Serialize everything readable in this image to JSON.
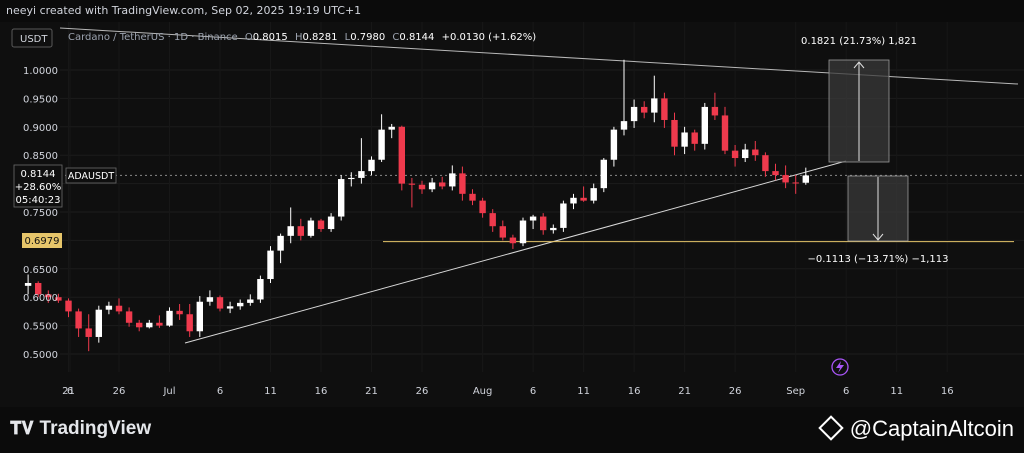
{
  "credit": "neeyi created with TradingView.com, Sep 02, 2025 19:19 UTC+1",
  "quote_currency": "USDT",
  "legend": {
    "symbol": "Cardano / TetherUS · 1D · Binance",
    "o_label": "O",
    "o_val": "0.8015",
    "h_label": "H",
    "h_val": "0.8281",
    "l_label": "L",
    "l_val": "0.7980",
    "c_label": "C",
    "c_val": "0.8144",
    "change": "+0.0130 (+1.62%)"
  },
  "price_label": {
    "price": "0.8144",
    "change": "+28.60%",
    "countdown": "05:40:23",
    "ticker": "ADAUSDT"
  },
  "support_label": "0.6979",
  "measure_up": "0.1821 (21.73%) 1,821",
  "measure_down": "−0.1113 (−13.71%) −1,113",
  "branding": {
    "tradingview": "TradingView",
    "captain": "@CaptainAltcoin"
  },
  "colors": {
    "up": "#ffffff",
    "down": "#ef3a4d",
    "support": "#e6c56a",
    "background": "#0f0f0f"
  },
  "icons": {
    "lightning": "lightning-icon"
  },
  "chart_data": {
    "type": "candlestick",
    "x_ticks": [
      "6",
      "21",
      "26",
      "Jul",
      "6",
      "11",
      "16",
      "21",
      "26",
      "Aug",
      "6",
      "11",
      "16",
      "21",
      "26",
      "Sep",
      "6",
      "11",
      "16"
    ],
    "y_ticks": [
      "1.0000",
      "0.9500",
      "0.9000",
      "0.8500",
      "0.8000",
      "0.7500",
      "0.7000",
      "0.6500",
      "0.6000",
      "0.5500",
      "0.5000"
    ],
    "ylim": [
      0.48,
      1.03
    ],
    "x_range": [
      "2025-06-16",
      "2025-09-17"
    ],
    "support_level": 0.6979,
    "series": [
      {
        "d": "2025-06-17",
        "o": 0.62,
        "h": 0.64,
        "l": 0.605,
        "c": 0.625
      },
      {
        "d": "2025-06-18",
        "o": 0.625,
        "h": 0.628,
        "l": 0.6,
        "c": 0.605
      },
      {
        "d": "2025-06-19",
        "o": 0.605,
        "h": 0.612,
        "l": 0.59,
        "c": 0.6
      },
      {
        "d": "2025-06-20",
        "o": 0.6,
        "h": 0.606,
        "l": 0.59,
        "c": 0.594
      },
      {
        "d": "2025-06-21",
        "o": 0.594,
        "h": 0.598,
        "l": 0.565,
        "c": 0.575
      },
      {
        "d": "2025-06-22",
        "o": 0.575,
        "h": 0.58,
        "l": 0.53,
        "c": 0.545
      },
      {
        "d": "2025-06-23",
        "o": 0.545,
        "h": 0.57,
        "l": 0.505,
        "c": 0.53
      },
      {
        "d": "2025-06-24",
        "o": 0.53,
        "h": 0.585,
        "l": 0.52,
        "c": 0.578
      },
      {
        "d": "2025-06-25",
        "o": 0.578,
        "h": 0.592,
        "l": 0.57,
        "c": 0.585
      },
      {
        "d": "2025-06-26",
        "o": 0.585,
        "h": 0.598,
        "l": 0.57,
        "c": 0.575
      },
      {
        "d": "2025-06-27",
        "o": 0.575,
        "h": 0.582,
        "l": 0.548,
        "c": 0.555
      },
      {
        "d": "2025-06-28",
        "o": 0.555,
        "h": 0.56,
        "l": 0.54,
        "c": 0.547
      },
      {
        "d": "2025-06-29",
        "o": 0.547,
        "h": 0.56,
        "l": 0.545,
        "c": 0.555
      },
      {
        "d": "2025-06-30",
        "o": 0.555,
        "h": 0.568,
        "l": 0.546,
        "c": 0.55
      },
      {
        "d": "2025-07-01",
        "o": 0.55,
        "h": 0.582,
        "l": 0.548,
        "c": 0.576
      },
      {
        "d": "2025-07-02",
        "o": 0.576,
        "h": 0.588,
        "l": 0.56,
        "c": 0.57
      },
      {
        "d": "2025-07-03",
        "o": 0.57,
        "h": 0.588,
        "l": 0.53,
        "c": 0.54
      },
      {
        "d": "2025-07-04",
        "o": 0.54,
        "h": 0.602,
        "l": 0.53,
        "c": 0.592
      },
      {
        "d": "2025-07-05",
        "o": 0.592,
        "h": 0.612,
        "l": 0.585,
        "c": 0.6
      },
      {
        "d": "2025-07-06",
        "o": 0.6,
        "h": 0.603,
        "l": 0.575,
        "c": 0.58
      },
      {
        "d": "2025-07-07",
        "o": 0.58,
        "h": 0.592,
        "l": 0.572,
        "c": 0.584
      },
      {
        "d": "2025-07-08",
        "o": 0.584,
        "h": 0.596,
        "l": 0.578,
        "c": 0.59
      },
      {
        "d": "2025-07-09",
        "o": 0.59,
        "h": 0.605,
        "l": 0.585,
        "c": 0.596
      },
      {
        "d": "2025-07-10",
        "o": 0.596,
        "h": 0.638,
        "l": 0.59,
        "c": 0.632
      },
      {
        "d": "2025-07-11",
        "o": 0.632,
        "h": 0.69,
        "l": 0.625,
        "c": 0.682
      },
      {
        "d": "2025-07-12",
        "o": 0.682,
        "h": 0.712,
        "l": 0.66,
        "c": 0.708
      },
      {
        "d": "2025-07-13",
        "o": 0.708,
        "h": 0.758,
        "l": 0.695,
        "c": 0.725
      },
      {
        "d": "2025-07-14",
        "o": 0.725,
        "h": 0.738,
        "l": 0.7,
        "c": 0.708
      },
      {
        "d": "2025-07-15",
        "o": 0.708,
        "h": 0.74,
        "l": 0.705,
        "c": 0.735
      },
      {
        "d": "2025-07-16",
        "o": 0.735,
        "h": 0.738,
        "l": 0.715,
        "c": 0.72
      },
      {
        "d": "2025-07-17",
        "o": 0.72,
        "h": 0.748,
        "l": 0.715,
        "c": 0.742
      },
      {
        "d": "2025-07-18",
        "o": 0.742,
        "h": 0.815,
        "l": 0.735,
        "c": 0.808
      },
      {
        "d": "2025-07-19",
        "o": 0.808,
        "h": 0.82,
        "l": 0.795,
        "c": 0.81
      },
      {
        "d": "2025-07-20",
        "o": 0.81,
        "h": 0.88,
        "l": 0.8,
        "c": 0.822
      },
      {
        "d": "2025-07-21",
        "o": 0.822,
        "h": 0.848,
        "l": 0.815,
        "c": 0.842
      },
      {
        "d": "2025-07-22",
        "o": 0.842,
        "h": 0.922,
        "l": 0.838,
        "c": 0.895
      },
      {
        "d": "2025-07-23",
        "o": 0.895,
        "h": 0.905,
        "l": 0.88,
        "c": 0.9
      },
      {
        "d": "2025-07-24",
        "o": 0.9,
        "h": 0.902,
        "l": 0.788,
        "c": 0.8
      },
      {
        "d": "2025-07-25",
        "o": 0.8,
        "h": 0.81,
        "l": 0.758,
        "c": 0.798
      },
      {
        "d": "2025-07-26",
        "o": 0.798,
        "h": 0.805,
        "l": 0.782,
        "c": 0.79
      },
      {
        "d": "2025-07-27",
        "o": 0.79,
        "h": 0.81,
        "l": 0.785,
        "c": 0.802
      },
      {
        "d": "2025-07-28",
        "o": 0.802,
        "h": 0.812,
        "l": 0.79,
        "c": 0.795
      },
      {
        "d": "2025-07-29",
        "o": 0.795,
        "h": 0.832,
        "l": 0.788,
        "c": 0.818
      },
      {
        "d": "2025-07-30",
        "o": 0.818,
        "h": 0.83,
        "l": 0.77,
        "c": 0.782
      },
      {
        "d": "2025-07-31",
        "o": 0.782,
        "h": 0.79,
        "l": 0.762,
        "c": 0.77
      },
      {
        "d": "2025-08-01",
        "o": 0.77,
        "h": 0.775,
        "l": 0.74,
        "c": 0.748
      },
      {
        "d": "2025-08-02",
        "o": 0.748,
        "h": 0.755,
        "l": 0.715,
        "c": 0.725
      },
      {
        "d": "2025-08-03",
        "o": 0.725,
        "h": 0.735,
        "l": 0.7,
        "c": 0.705
      },
      {
        "d": "2025-08-04",
        "o": 0.705,
        "h": 0.71,
        "l": 0.685,
        "c": 0.695
      },
      {
        "d": "2025-08-05",
        "o": 0.695,
        "h": 0.74,
        "l": 0.69,
        "c": 0.735
      },
      {
        "d": "2025-08-06",
        "o": 0.735,
        "h": 0.745,
        "l": 0.72,
        "c": 0.742
      },
      {
        "d": "2025-08-07",
        "o": 0.742,
        "h": 0.748,
        "l": 0.71,
        "c": 0.718
      },
      {
        "d": "2025-08-08",
        "o": 0.718,
        "h": 0.728,
        "l": 0.712,
        "c": 0.722
      },
      {
        "d": "2025-08-09",
        "o": 0.722,
        "h": 0.77,
        "l": 0.715,
        "c": 0.765
      },
      {
        "d": "2025-08-10",
        "o": 0.765,
        "h": 0.782,
        "l": 0.755,
        "c": 0.775
      },
      {
        "d": "2025-08-11",
        "o": 0.775,
        "h": 0.795,
        "l": 0.768,
        "c": 0.77
      },
      {
        "d": "2025-08-12",
        "o": 0.77,
        "h": 0.8,
        "l": 0.765,
        "c": 0.792
      },
      {
        "d": "2025-08-13",
        "o": 0.792,
        "h": 0.845,
        "l": 0.785,
        "c": 0.842
      },
      {
        "d": "2025-08-14",
        "o": 0.842,
        "h": 0.9,
        "l": 0.83,
        "c": 0.895
      },
      {
        "d": "2025-08-15",
        "o": 0.895,
        "h": 1.018,
        "l": 0.885,
        "c": 0.91
      },
      {
        "d": "2025-08-16",
        "o": 0.91,
        "h": 0.948,
        "l": 0.898,
        "c": 0.935
      },
      {
        "d": "2025-08-17",
        "o": 0.935,
        "h": 0.945,
        "l": 0.915,
        "c": 0.925
      },
      {
        "d": "2025-08-18",
        "o": 0.925,
        "h": 0.99,
        "l": 0.908,
        "c": 0.95
      },
      {
        "d": "2025-08-19",
        "o": 0.95,
        "h": 0.96,
        "l": 0.898,
        "c": 0.912
      },
      {
        "d": "2025-08-20",
        "o": 0.912,
        "h": 0.925,
        "l": 0.85,
        "c": 0.865
      },
      {
        "d": "2025-08-21",
        "o": 0.865,
        "h": 0.9,
        "l": 0.852,
        "c": 0.89
      },
      {
        "d": "2025-08-22",
        "o": 0.89,
        "h": 0.895,
        "l": 0.858,
        "c": 0.87
      },
      {
        "d": "2025-08-23",
        "o": 0.87,
        "h": 0.942,
        "l": 0.86,
        "c": 0.935
      },
      {
        "d": "2025-08-24",
        "o": 0.935,
        "h": 0.96,
        "l": 0.912,
        "c": 0.92
      },
      {
        "d": "2025-08-25",
        "o": 0.92,
        "h": 0.935,
        "l": 0.852,
        "c": 0.858
      },
      {
        "d": "2025-08-26",
        "o": 0.858,
        "h": 0.868,
        "l": 0.83,
        "c": 0.845
      },
      {
        "d": "2025-08-27",
        "o": 0.845,
        "h": 0.87,
        "l": 0.838,
        "c": 0.86
      },
      {
        "d": "2025-08-28",
        "o": 0.86,
        "h": 0.875,
        "l": 0.84,
        "c": 0.85
      },
      {
        "d": "2025-08-29",
        "o": 0.85,
        "h": 0.855,
        "l": 0.812,
        "c": 0.822
      },
      {
        "d": "2025-08-30",
        "o": 0.822,
        "h": 0.835,
        "l": 0.806,
        "c": 0.815
      },
      {
        "d": "2025-08-31",
        "o": 0.815,
        "h": 0.832,
        "l": 0.792,
        "c": 0.802
      },
      {
        "d": "2025-09-01",
        "o": 0.802,
        "h": 0.815,
        "l": 0.782,
        "c": 0.8015
      },
      {
        "d": "2025-09-02",
        "o": 0.8015,
        "h": 0.8281,
        "l": 0.798,
        "c": 0.8144
      }
    ]
  }
}
